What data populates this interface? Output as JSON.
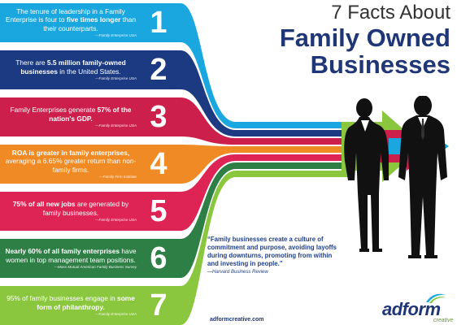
{
  "title": {
    "top": "7 Facts About",
    "main_line1": "Family Owned",
    "main_line2": "Businesses"
  },
  "colors": {
    "fact1": "#1aa7df",
    "fact2": "#1b3a82",
    "fact3": "#cc1f4b",
    "fact4": "#f08a24",
    "fact5": "#dd2454",
    "fact6": "#2d7f45",
    "fact7": "#8bc63f",
    "arrow_green": "#8bc63f",
    "arrow_red": "#cc1f4b",
    "arrow_blue": "#1aa7df",
    "title_blue": "#1f3677",
    "silhouette": "#111111"
  },
  "facts": [
    {
      "number": "1",
      "pre": "The tenure of leadership in a Family Enterprise is four to ",
      "bold": "five times longer",
      "post": " than their counterparts.",
      "source": "—Family Enterprise USA"
    },
    {
      "number": "2",
      "pre": "There are ",
      "bold": "5.5 million family-owned businesses",
      "post": " in the United States.",
      "source": "—Family Enterprise USA"
    },
    {
      "number": "3",
      "pre": "Family Enterprises generate ",
      "bold": "57% of the nation's GDP.",
      "post": "",
      "source": "—Family Enterprise USA"
    },
    {
      "number": "4",
      "pre": "",
      "bold": "ROA is greater in family enterprises,",
      "post": " averaging a 6.65% greater return than non-family firms.",
      "source": "—Family Firm Institute"
    },
    {
      "number": "5",
      "pre": "",
      "bold": "75% of all new jobs",
      "post": " are generated by family businesses.",
      "source": "—Family Enterprise USA"
    },
    {
      "number": "6",
      "pre": "",
      "bold": "Nearly 60% of all family enterprises",
      "post": " have women in top management team positions.",
      "source": "—Mass Mutual American Family Business Survey"
    },
    {
      "number": "7",
      "pre": "95% of family businesses engage in ",
      "bold": "some form of philanthropy.",
      "post": "",
      "source": "—Family Enterprise USA"
    }
  ],
  "quote": {
    "text": "“Family businesses create a culture of commitment and purpose, avoiding layoffs during downturns, promoting from within and investing in people.”",
    "source": "—Harvard Business Review"
  },
  "website": "adformcreative.com",
  "logo": {
    "word": "adform",
    "sub": "creative",
    "icon": "swoosh-icon"
  },
  "illustration": {
    "icon": "business-people-silhouette"
  }
}
